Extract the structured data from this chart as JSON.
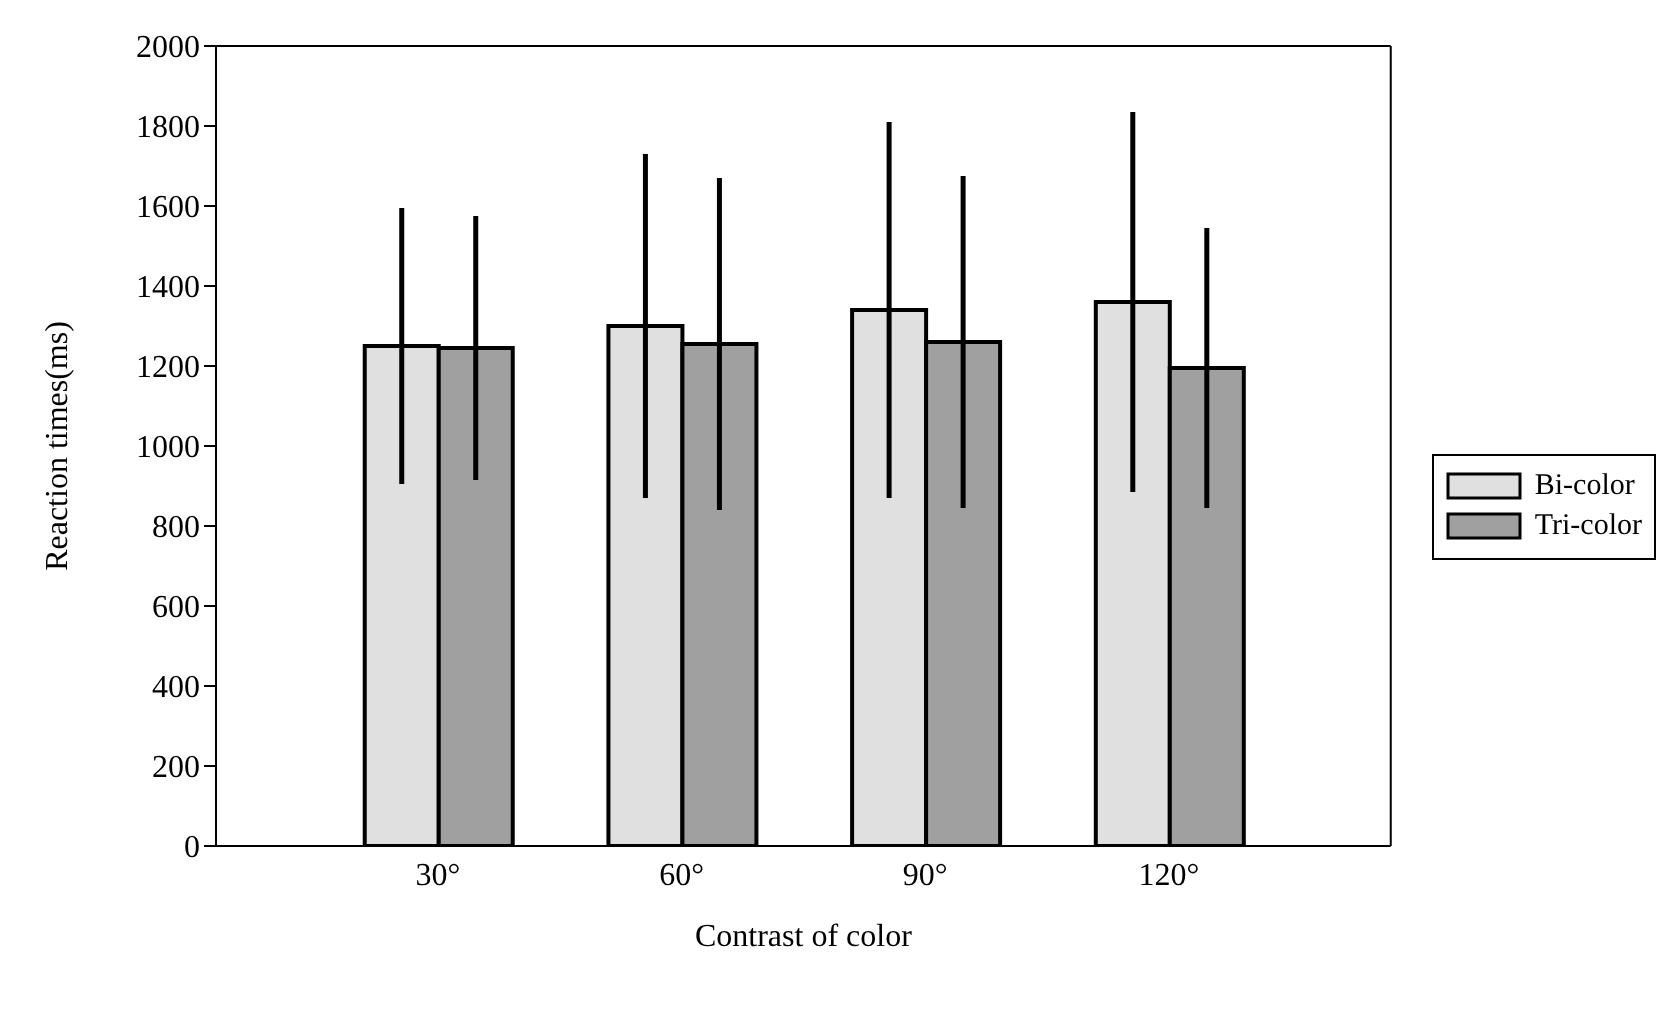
{
  "chart_data": {
    "type": "bar",
    "xlabel": "Contrast of color",
    "ylabel": "Reaction times(ms)",
    "categories": [
      "30°",
      "60°",
      "90°",
      "120°"
    ],
    "series": [
      {
        "name": "Bi-color",
        "color": "#e0e0e0",
        "values": [
          1250,
          1300,
          1340,
          1360
        ],
        "errors": [
          345,
          430,
          470,
          475
        ]
      },
      {
        "name": "Tri-color",
        "color": "#a0a0a0",
        "values": [
          1245,
          1255,
          1260,
          1195
        ],
        "errors": [
          330,
          415,
          415,
          350
        ]
      }
    ],
    "ylim": [
      0,
      2000
    ],
    "yticks": [
      0,
      200,
      400,
      600,
      800,
      1000,
      1200,
      1400,
      1600,
      1800,
      2000
    ],
    "legend": "right"
  }
}
